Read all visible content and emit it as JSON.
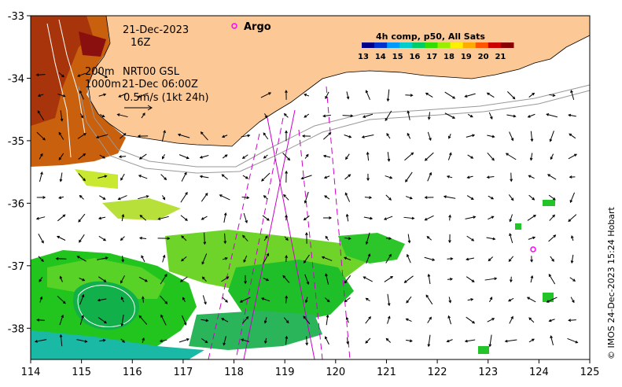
{
  "map": {
    "lon_range": [
      114,
      125
    ],
    "lat_range": [
      -38.5,
      -33
    ],
    "x_ticks": [
      "114",
      "115",
      "116",
      "117",
      "118",
      "119",
      "120",
      "121",
      "122",
      "123",
      "124",
      "125"
    ],
    "y_ticks": [
      "-33",
      "-34",
      "-35",
      "-36",
      "-37",
      "-38"
    ]
  },
  "annotations": {
    "date": "21-Dec-2023",
    "hour": "16Z",
    "depth_line1_a": "200m",
    "depth_line1_b": "NRT00 GSL",
    "depth_line2_a": "1000m",
    "depth_line2_b": "21-Dec 06:00Z",
    "scale": "0.5m/s (1kt 24h)"
  },
  "legend": {
    "argo_label": "Argo"
  },
  "colorbar": {
    "title": "4h comp, p50, All Sats",
    "labels": [
      "13",
      "14",
      "15",
      "16",
      "17",
      "18",
      "19",
      "20",
      "21"
    ],
    "colors": [
      "#00008b",
      "#0033cc",
      "#0099ff",
      "#00cccc",
      "#00cc66",
      "#33dd00",
      "#99ee00",
      "#ffee00",
      "#ffaa00",
      "#ff5500",
      "#cc0000",
      "#880000"
    ]
  },
  "copyright": "© IMOS 24-Dec-2023 15:24 Hobart",
  "colors": {
    "land": "#fcc896",
    "track": "#cc00cc",
    "argo": "#ff00ff",
    "isobath": "#999999"
  }
}
